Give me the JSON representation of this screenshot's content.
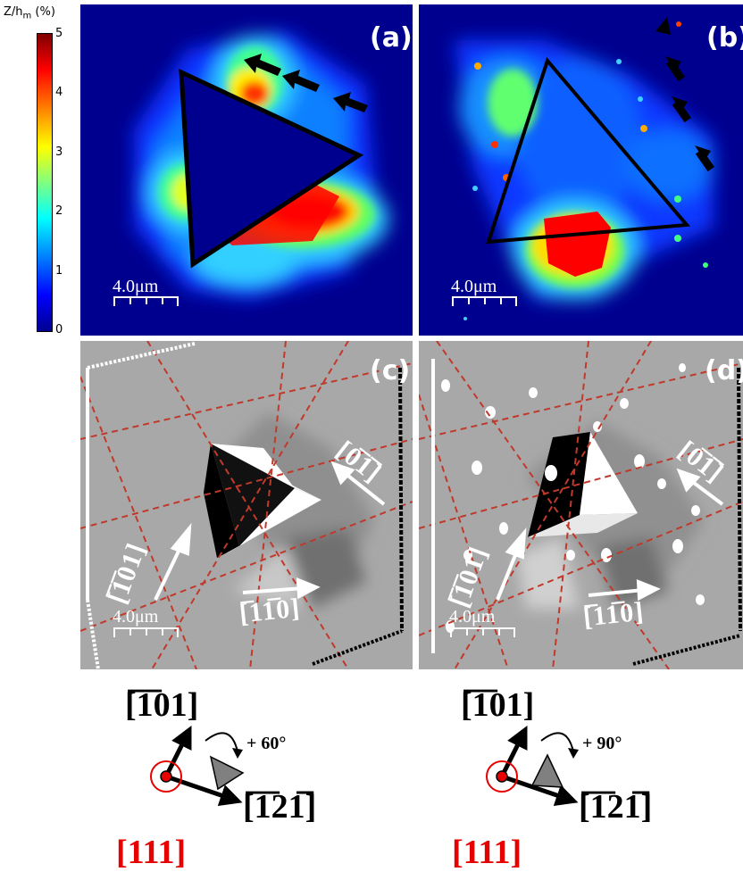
{
  "colorbar": {
    "title_main": "Z/h",
    "title_sub": "m",
    "title_unit": "(%)",
    "ticks": [
      "5",
      "4",
      "3",
      "2",
      "1",
      "0"
    ]
  },
  "panels": {
    "a": {
      "label": "(a)",
      "scale": "4.0μm"
    },
    "b": {
      "label": "(b)",
      "scale": "4.0μm"
    },
    "c": {
      "label": "(c)",
      "scale": "4.0μm"
    },
    "d": {
      "label": "(d)",
      "scale": "4.0μm"
    }
  },
  "directions": {
    "d_0m1m1": "[0̅1̅]",
    "d_m101": "[̅1̅01]",
    "d_m110": "[̅11̅0]"
  },
  "diagrams": {
    "left": {
      "up": "[̅1̅01]",
      "right": "[̅1̅21̅̅]",
      "normal": "[111]",
      "rotation": "+ 60°"
    },
    "right": {
      "up": "[̅1̅01]",
      "right": "[̅1̅21̅̅]",
      "normal": "[111]",
      "rotation": "+ 90°"
    }
  },
  "colors": {
    "jet_low": "#00008f",
    "jet_high": "#800000",
    "red_dir": "#e60000",
    "dash": "#c0392b"
  }
}
